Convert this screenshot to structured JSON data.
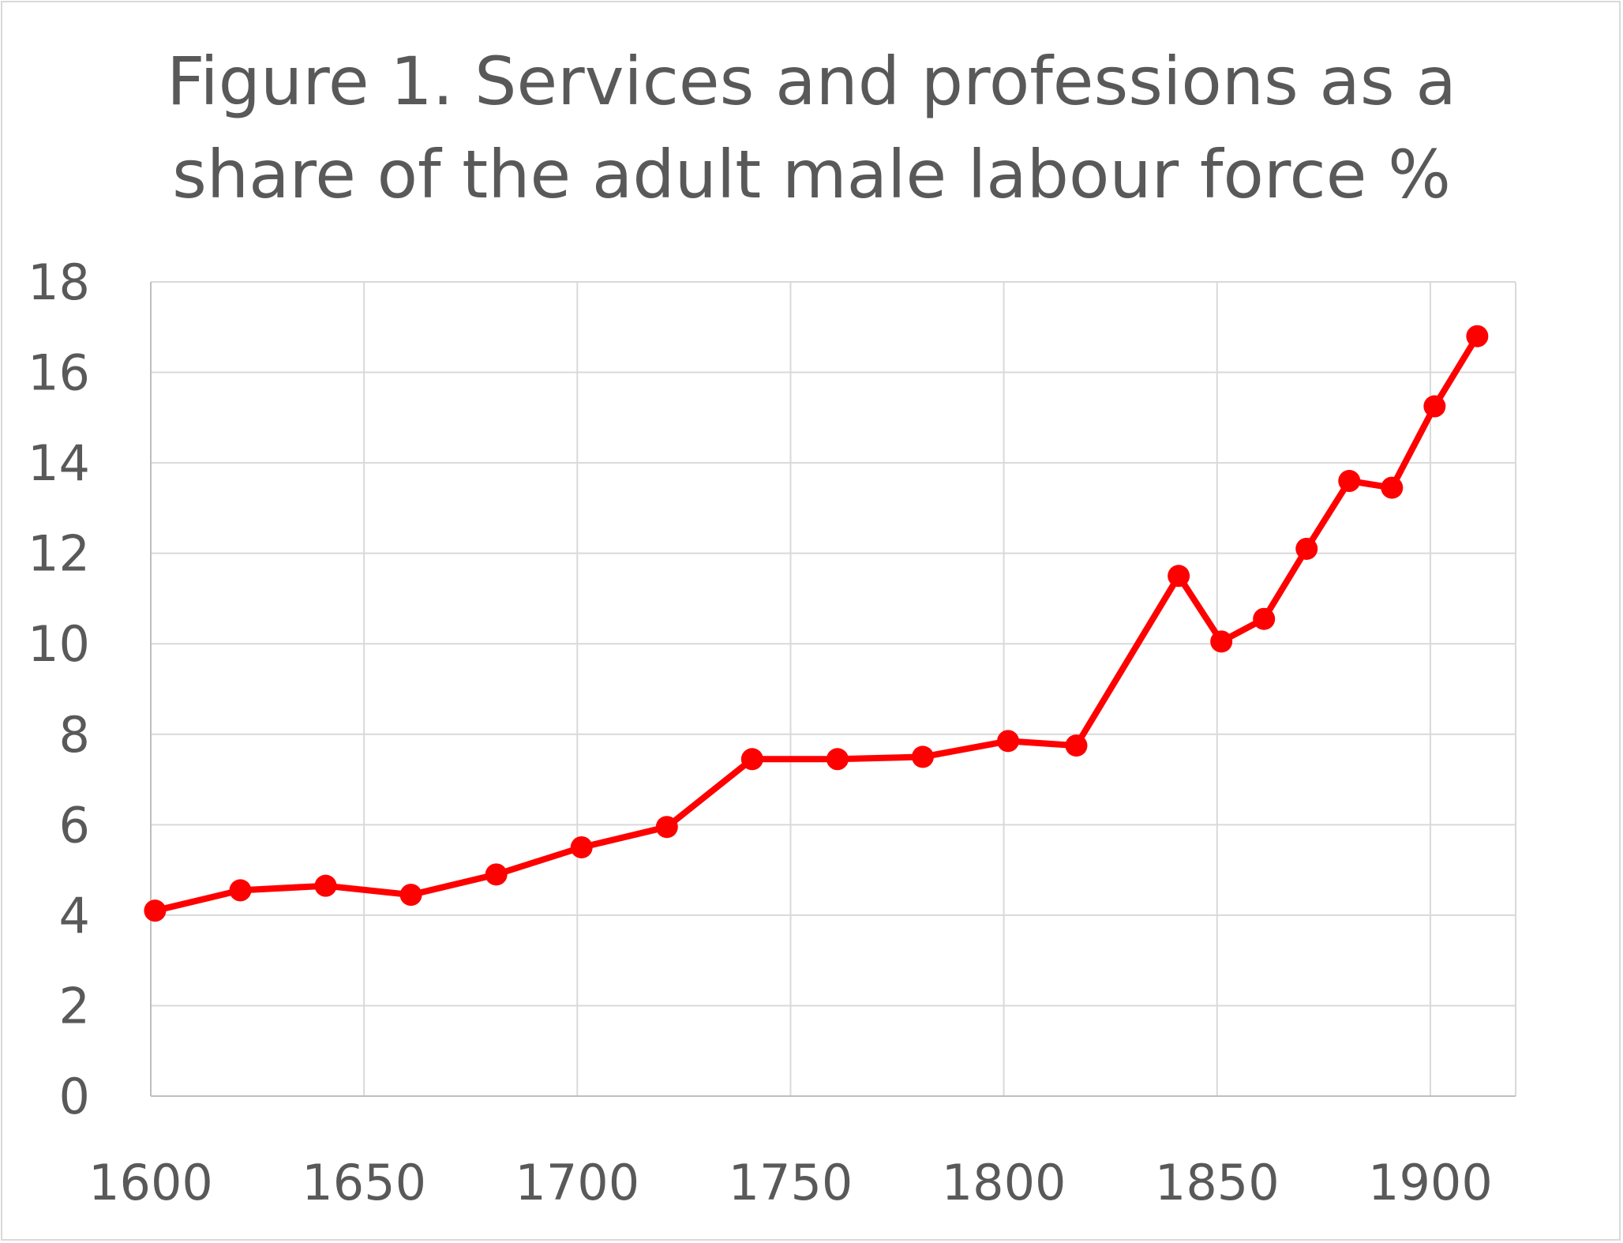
{
  "chart_data": {
    "type": "line",
    "title_lines": [
      "Figure 1. Services and professions as a",
      "share of the adult male labour force %"
    ],
    "xlabel": "",
    "ylabel": "",
    "xlim": [
      1600,
      1920
    ],
    "ylim": [
      0,
      18
    ],
    "x_ticks": [
      1600,
      1650,
      1700,
      1750,
      1800,
      1850,
      1900
    ],
    "y_ticks": [
      0,
      2,
      4,
      6,
      8,
      10,
      12,
      14,
      16,
      18
    ],
    "grid": true,
    "legend": "none",
    "series": [
      {
        "color": "#ff0000",
        "points": [
          {
            "x": 1601,
            "y": 4.1
          },
          {
            "x": 1621,
            "y": 4.55
          },
          {
            "x": 1641,
            "y": 4.65
          },
          {
            "x": 1661,
            "y": 4.45
          },
          {
            "x": 1681,
            "y": 4.9
          },
          {
            "x": 1701,
            "y": 5.5
          },
          {
            "x": 1721,
            "y": 5.95
          },
          {
            "x": 1741,
            "y": 7.45
          },
          {
            "x": 1761,
            "y": 7.45
          },
          {
            "x": 1781,
            "y": 7.5
          },
          {
            "x": 1801,
            "y": 7.85
          },
          {
            "x": 1817,
            "y": 7.75
          },
          {
            "x": 1841,
            "y": 11.5
          },
          {
            "x": 1851,
            "y": 10.05
          },
          {
            "x": 1861,
            "y": 10.55
          },
          {
            "x": 1871,
            "y": 12.1
          },
          {
            "x": 1881,
            "y": 13.6
          },
          {
            "x": 1891,
            "y": 13.45
          },
          {
            "x": 1901,
            "y": 15.25
          },
          {
            "x": 1911,
            "y": 16.8
          }
        ]
      }
    ]
  }
}
